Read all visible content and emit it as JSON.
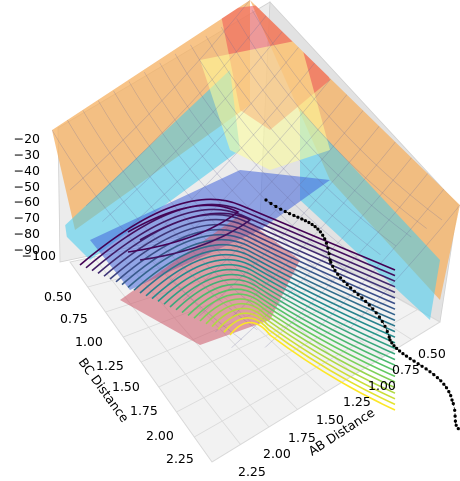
{
  "chart_data": {
    "type": "surface-3d",
    "title": "",
    "surface_colors": {
      "low": "#3333cc",
      "mid_low": "#33ccee",
      "mid": "#ffff99",
      "high": "#ee4444",
      "plateau": "#f5b060"
    },
    "contour_colormap": [
      "#440154",
      "#3b528b",
      "#21908d",
      "#5dc963",
      "#fde725"
    ],
    "axes": {
      "x": {
        "label": "AB Distance",
        "ticks": [
          "0.50",
          "0.75",
          "1.00",
          "1.25",
          "1.50",
          "1.75",
          "2.00",
          "2.25"
        ],
        "range": [
          0.5,
          2.25
        ]
      },
      "y": {
        "label": "BC Distance",
        "ticks": [
          "0.50",
          "0.75",
          "1.00",
          "1.25",
          "1.50",
          "1.75",
          "2.00",
          "2.25"
        ],
        "range": [
          0.5,
          2.25
        ]
      },
      "z": {
        "label": "",
        "ticks": [
          "−20",
          "−30",
          "−40",
          "−50",
          "−60",
          "−70",
          "−80",
          "−90",
          "−100"
        ],
        "range": [
          -100,
          -20
        ]
      }
    },
    "trajectory": {
      "marker_color": "#000000",
      "style": "dotted line with markers"
    }
  }
}
